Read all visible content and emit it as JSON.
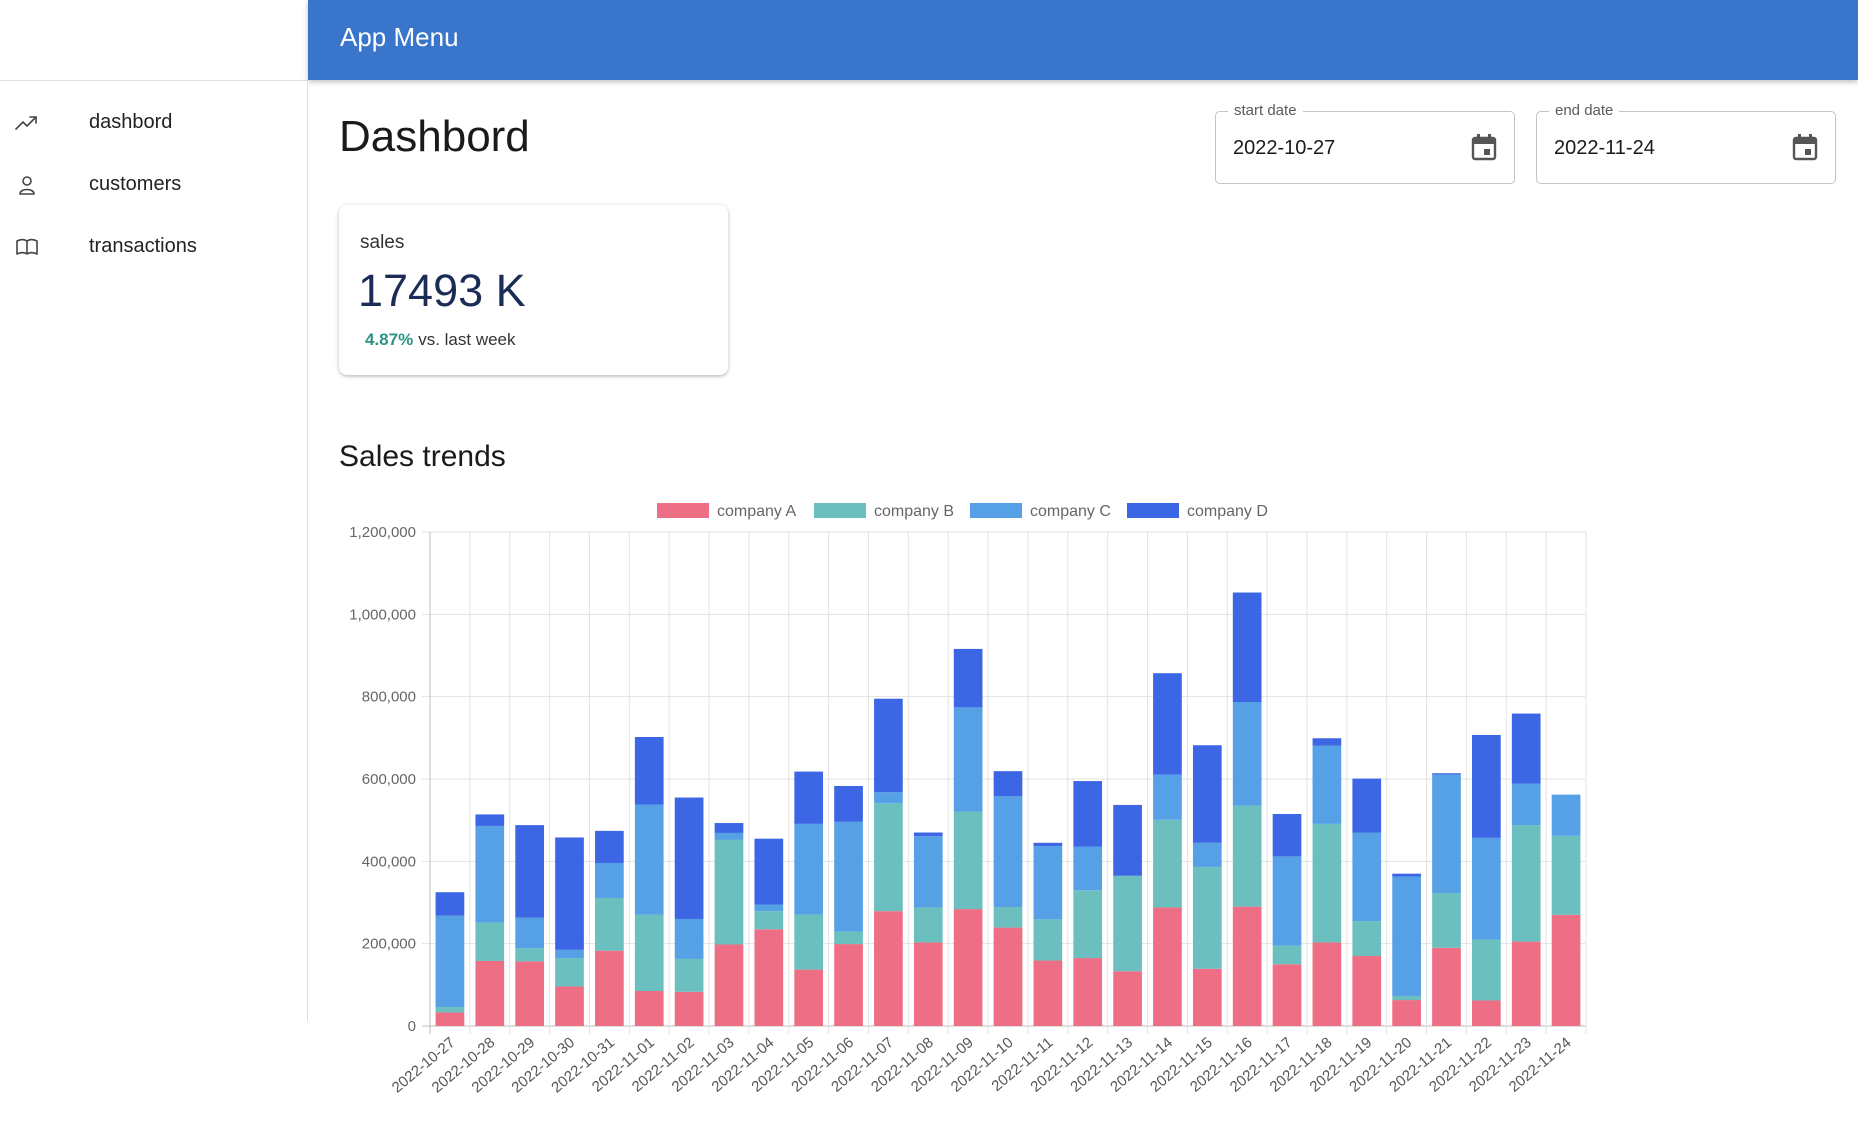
{
  "app": {
    "title": "App Menu"
  },
  "sidebar": {
    "items": [
      {
        "label": "dashbord",
        "icon": "trending-up-icon"
      },
      {
        "label": "customers",
        "icon": "person-icon"
      },
      {
        "label": "transactions",
        "icon": "open-book-icon"
      }
    ]
  },
  "page": {
    "title": "Dashbord"
  },
  "date_range": {
    "start": {
      "label": "start date",
      "value": "2022-10-27",
      "icon": "calendar-icon"
    },
    "end": {
      "label": "end date",
      "value": "2022-11-24",
      "icon": "calendar-icon"
    }
  },
  "kpi": {
    "label": "sales",
    "value": "17493 K",
    "delta_pct": "4.87%",
    "delta_text": "vs. last week",
    "delta_color": "#2c9486"
  },
  "section": {
    "title": "Sales trends"
  },
  "colors": {
    "appbar": "#3a75cc",
    "company_a": "#ee6e85",
    "company_b": "#6cbfbf",
    "company_c": "#56a0e5",
    "company_d": "#3c66e3"
  },
  "chart_data": {
    "type": "bar",
    "stacked": true,
    "legend": "top",
    "grid": true,
    "ylim": [
      0,
      1200000
    ],
    "yticks": [
      0,
      200000,
      400000,
      600000,
      800000,
      1000000,
      1200000
    ],
    "ytick_labels": [
      "0",
      "200,000",
      "400,000",
      "600,000",
      "800,000",
      "1,000,000",
      "1,200,000"
    ],
    "categories": [
      "2022-10-27",
      "2022-10-28",
      "2022-10-29",
      "2022-10-30",
      "2022-10-31",
      "2022-11-01",
      "2022-11-02",
      "2022-11-03",
      "2022-11-04",
      "2022-11-05",
      "2022-11-06",
      "2022-11-07",
      "2022-11-08",
      "2022-11-09",
      "2022-11-10",
      "2022-11-11",
      "2022-11-12",
      "2022-11-13",
      "2022-11-14",
      "2022-11-15",
      "2022-11-16",
      "2022-11-17",
      "2022-11-18",
      "2022-11-19",
      "2022-11-20",
      "2022-11-21",
      "2022-11-22",
      "2022-11-23",
      "2022-11-24"
    ],
    "series": [
      {
        "name": "company A",
        "color": "#ee6e85",
        "values": [
          33000,
          158000,
          157000,
          96000,
          183000,
          85000,
          83000,
          198000,
          235000,
          137000,
          199000,
          279000,
          203000,
          284000,
          239000,
          159000,
          165000,
          133000,
          288000,
          139000,
          290000,
          150000,
          203000,
          170000,
          63000,
          190000,
          62000,
          205000,
          270000
        ]
      },
      {
        "name": "company B",
        "color": "#6cbfbf",
        "values": [
          13000,
          93000,
          32000,
          69000,
          128000,
          185000,
          80000,
          254000,
          44000,
          134000,
          30000,
          262000,
          85000,
          237000,
          50000,
          100000,
          165000,
          232000,
          213000,
          247000,
          245000,
          45000,
          288000,
          85000,
          10000,
          133000,
          148000,
          283000,
          192000
        ]
      },
      {
        "name": "company C",
        "color": "#56a0e5",
        "values": [
          222000,
          235000,
          74000,
          20000,
          85000,
          268000,
          97000,
          17000,
          16000,
          220000,
          267000,
          27000,
          173000,
          253000,
          269000,
          178000,
          106000,
          0,
          110000,
          59000,
          252000,
          217000,
          190000,
          215000,
          290000,
          288000,
          247000,
          101000,
          100000
        ]
      },
      {
        "name": "company D",
        "color": "#3c66e3",
        "values": [
          57000,
          28000,
          225000,
          273000,
          78000,
          164000,
          295000,
          24000,
          160000,
          127000,
          87000,
          227000,
          9000,
          142000,
          61000,
          8000,
          159000,
          172000,
          246000,
          237000,
          266000,
          103000,
          18000,
          131000,
          7000,
          3000,
          250000,
          170000,
          0
        ]
      }
    ]
  }
}
